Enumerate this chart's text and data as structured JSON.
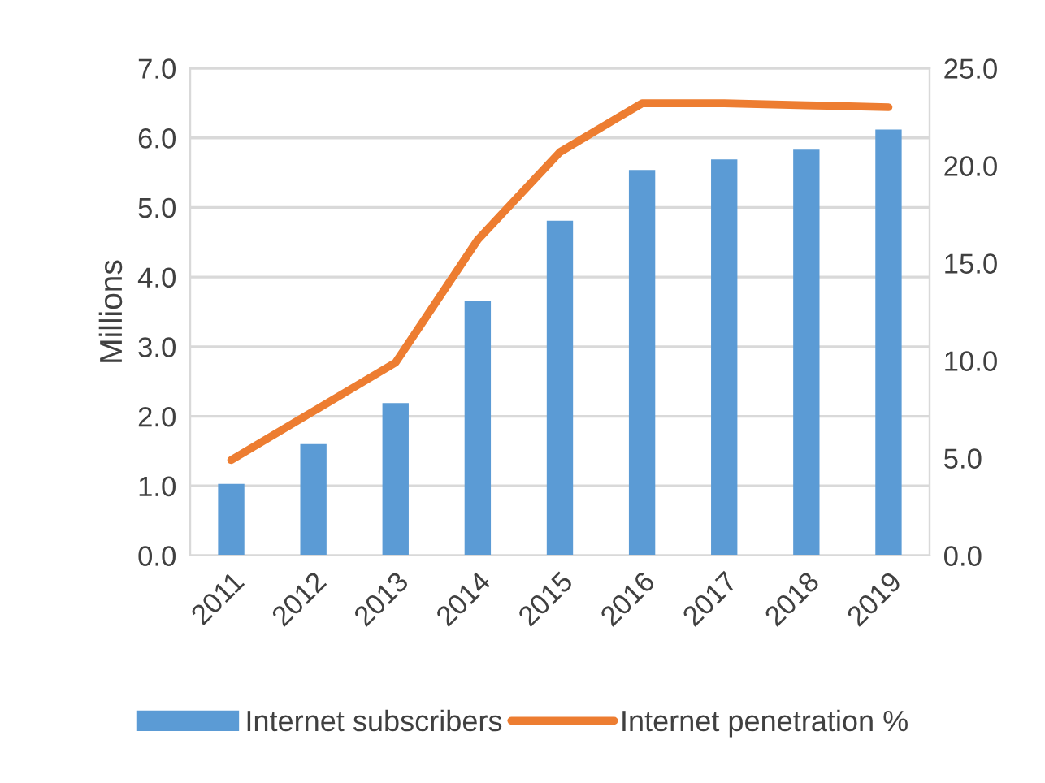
{
  "chart_data": {
    "type": "bar",
    "ylabel": "Millions",
    "categories": [
      "2011",
      "2012",
      "2013",
      "2014",
      "2015",
      "2016",
      "2017",
      "2018",
      "2019"
    ],
    "series": [
      {
        "name": "Internet subscribers",
        "color": "#5b9bd5",
        "values": [
          1.03,
          1.6,
          2.19,
          3.66,
          4.81,
          5.54,
          5.69,
          5.83,
          6.12
        ]
      },
      {
        "name": "Internet penetration %",
        "type": "line",
        "axis": "y2",
        "color": "#ed7d31",
        "values": [
          4.9,
          7.4,
          9.9,
          16.2,
          20.7,
          23.2,
          23.2,
          23.1,
          23.0
        ]
      }
    ],
    "ylim": [
      0,
      7
    ],
    "yticks": [
      {
        "value": 0,
        "label": "0.0"
      },
      {
        "value": 1,
        "label": "1.0"
      },
      {
        "value": 2,
        "label": "2.0"
      },
      {
        "value": 3,
        "label": "3.0"
      },
      {
        "value": 4,
        "label": "4.0"
      },
      {
        "value": 5,
        "label": "5.0"
      },
      {
        "value": 6,
        "label": "6.0"
      },
      {
        "value": 7,
        "label": "7.0"
      }
    ],
    "y2lim": [
      0,
      25
    ],
    "y2ticks": [
      {
        "value": 0,
        "label": "0.0"
      },
      {
        "value": 5,
        "label": "5.0"
      },
      {
        "value": 10,
        "label": "10.0"
      },
      {
        "value": 15,
        "label": "15.0"
      },
      {
        "value": 20,
        "label": "20.0"
      },
      {
        "value": 25,
        "label": "25.0"
      }
    ],
    "grid": "y",
    "legend": "bottom",
    "marker": "none",
    "line_style": "solid"
  }
}
